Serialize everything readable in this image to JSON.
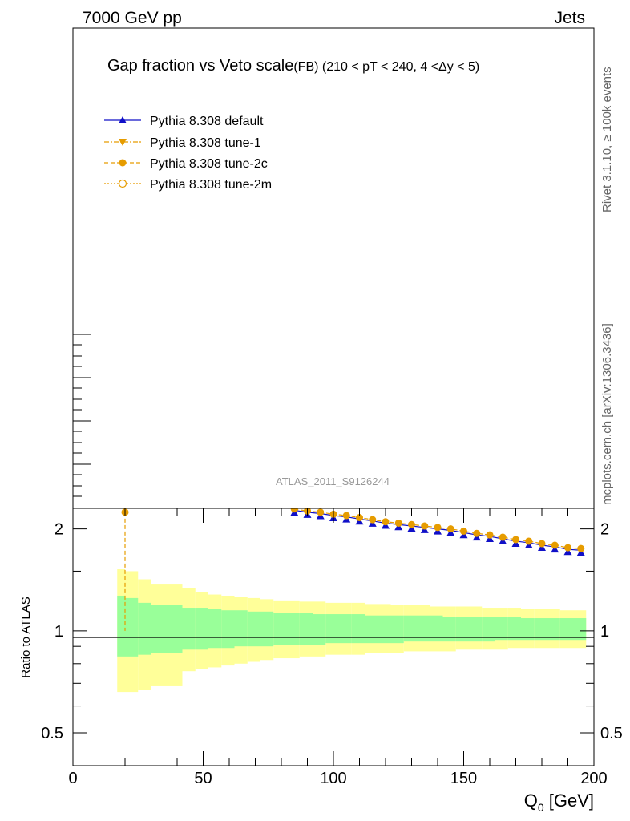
{
  "header": {
    "beam": "7000 GeV pp",
    "category": "Jets"
  },
  "side": {
    "rivet": "Rivet 3.1.10, ≥ 100k events",
    "mcplots": "mcplots.cern.ch [arXiv:1306.3436]"
  },
  "colors": {
    "default": "#1010c8",
    "tunes": "#e69c00",
    "band_outer": "#ffff99",
    "band_inner": "#99ff99"
  },
  "chart_data": {
    "type": "line",
    "title_main": "Gap fraction vs Veto scale",
    "title_sub": "(FB) (210 < pT < 240, 4 <Δy < 5)",
    "analysis_label": "ATLAS_2011_S9126244",
    "xlabel": "Q",
    "xlabel_sub": "0",
    "xlabel_unit": " [GeV]",
    "ratio_ylabel": "Ratio to ATLAS",
    "xlim": [
      0,
      200
    ],
    "ratio_ylim": [
      0.4,
      2.3
    ],
    "ratio_log": true,
    "x_ticks": [
      "0",
      "50",
      "100",
      "150",
      "200"
    ],
    "ratio_ticks": [
      "0.5",
      "1",
      "2"
    ],
    "legend": [
      {
        "name": "Pythia 8.308 default",
        "marker": "triangle-up",
        "line": "solid",
        "color": "#1010c8"
      },
      {
        "name": "Pythia 8.308 tune-1",
        "marker": "triangle-down",
        "line": "dashdot",
        "color": "#e69c00"
      },
      {
        "name": "Pythia 8.308 tune-2c",
        "marker": "circle",
        "line": "dashed",
        "color": "#e69c00"
      },
      {
        "name": "Pythia 8.308 tune-2m",
        "marker": "circle-open",
        "line": "dotted",
        "color": "#e69c00"
      }
    ],
    "band_bins": [
      {
        "x0": 17,
        "x1": 20,
        "in_lo": 0.84,
        "in_hi": 1.27,
        "out_lo": 0.66,
        "out_hi": 1.52
      },
      {
        "x0": 20,
        "x1": 25,
        "in_lo": 0.84,
        "in_hi": 1.25,
        "out_lo": 0.66,
        "out_hi": 1.5
      },
      {
        "x0": 25,
        "x1": 30,
        "in_lo": 0.85,
        "in_hi": 1.21,
        "out_lo": 0.67,
        "out_hi": 1.42
      },
      {
        "x0": 30,
        "x1": 42,
        "in_lo": 0.86,
        "in_hi": 1.19,
        "out_lo": 0.69,
        "out_hi": 1.37
      },
      {
        "x0": 42,
        "x1": 47,
        "in_lo": 0.88,
        "in_hi": 1.17,
        "out_lo": 0.76,
        "out_hi": 1.34
      },
      {
        "x0": 47,
        "x1": 52,
        "in_lo": 0.88,
        "in_hi": 1.17,
        "out_lo": 0.77,
        "out_hi": 1.3
      },
      {
        "x0": 52,
        "x1": 57,
        "in_lo": 0.89,
        "in_hi": 1.16,
        "out_lo": 0.78,
        "out_hi": 1.28
      },
      {
        "x0": 57,
        "x1": 62,
        "in_lo": 0.89,
        "in_hi": 1.15,
        "out_lo": 0.79,
        "out_hi": 1.27
      },
      {
        "x0": 62,
        "x1": 67,
        "in_lo": 0.9,
        "in_hi": 1.15,
        "out_lo": 0.8,
        "out_hi": 1.26
      },
      {
        "x0": 67,
        "x1": 72,
        "in_lo": 0.9,
        "in_hi": 1.14,
        "out_lo": 0.81,
        "out_hi": 1.25
      },
      {
        "x0": 72,
        "x1": 77,
        "in_lo": 0.9,
        "in_hi": 1.14,
        "out_lo": 0.82,
        "out_hi": 1.24
      },
      {
        "x0": 77,
        "x1": 82,
        "in_lo": 0.91,
        "in_hi": 1.13,
        "out_lo": 0.83,
        "out_hi": 1.23
      },
      {
        "x0": 82,
        "x1": 87,
        "in_lo": 0.91,
        "in_hi": 1.13,
        "out_lo": 0.83,
        "out_hi": 1.23
      },
      {
        "x0": 87,
        "x1": 92,
        "in_lo": 0.91,
        "in_hi": 1.13,
        "out_lo": 0.84,
        "out_hi": 1.22
      },
      {
        "x0": 92,
        "x1": 97,
        "in_lo": 0.91,
        "in_hi": 1.12,
        "out_lo": 0.84,
        "out_hi": 1.22
      },
      {
        "x0": 97,
        "x1": 102,
        "in_lo": 0.92,
        "in_hi": 1.12,
        "out_lo": 0.85,
        "out_hi": 1.21
      },
      {
        "x0": 102,
        "x1": 107,
        "in_lo": 0.92,
        "in_hi": 1.12,
        "out_lo": 0.85,
        "out_hi": 1.21
      },
      {
        "x0": 107,
        "x1": 112,
        "in_lo": 0.92,
        "in_hi": 1.12,
        "out_lo": 0.85,
        "out_hi": 1.21
      },
      {
        "x0": 112,
        "x1": 117,
        "in_lo": 0.92,
        "in_hi": 1.11,
        "out_lo": 0.86,
        "out_hi": 1.2
      },
      {
        "x0": 117,
        "x1": 122,
        "in_lo": 0.92,
        "in_hi": 1.11,
        "out_lo": 0.86,
        "out_hi": 1.2
      },
      {
        "x0": 122,
        "x1": 127,
        "in_lo": 0.92,
        "in_hi": 1.11,
        "out_lo": 0.86,
        "out_hi": 1.19
      },
      {
        "x0": 127,
        "x1": 132,
        "in_lo": 0.93,
        "in_hi": 1.11,
        "out_lo": 0.87,
        "out_hi": 1.19
      },
      {
        "x0": 132,
        "x1": 137,
        "in_lo": 0.93,
        "in_hi": 1.11,
        "out_lo": 0.87,
        "out_hi": 1.19
      },
      {
        "x0": 137,
        "x1": 142,
        "in_lo": 0.93,
        "in_hi": 1.11,
        "out_lo": 0.87,
        "out_hi": 1.18
      },
      {
        "x0": 142,
        "x1": 147,
        "in_lo": 0.93,
        "in_hi": 1.1,
        "out_lo": 0.87,
        "out_hi": 1.18
      },
      {
        "x0": 147,
        "x1": 152,
        "in_lo": 0.93,
        "in_hi": 1.1,
        "out_lo": 0.88,
        "out_hi": 1.18
      },
      {
        "x0": 152,
        "x1": 157,
        "in_lo": 0.93,
        "in_hi": 1.1,
        "out_lo": 0.88,
        "out_hi": 1.18
      },
      {
        "x0": 157,
        "x1": 162,
        "in_lo": 0.93,
        "in_hi": 1.1,
        "out_lo": 0.88,
        "out_hi": 1.17
      },
      {
        "x0": 162,
        "x1": 167,
        "in_lo": 0.94,
        "in_hi": 1.1,
        "out_lo": 0.88,
        "out_hi": 1.17
      },
      {
        "x0": 167,
        "x1": 172,
        "in_lo": 0.94,
        "in_hi": 1.1,
        "out_lo": 0.89,
        "out_hi": 1.17
      },
      {
        "x0": 172,
        "x1": 177,
        "in_lo": 0.94,
        "in_hi": 1.09,
        "out_lo": 0.89,
        "out_hi": 1.16
      },
      {
        "x0": 177,
        "x1": 182,
        "in_lo": 0.94,
        "in_hi": 1.09,
        "out_lo": 0.89,
        "out_hi": 1.16
      },
      {
        "x0": 182,
        "x1": 187,
        "in_lo": 0.94,
        "in_hi": 1.09,
        "out_lo": 0.89,
        "out_hi": 1.16
      },
      {
        "x0": 187,
        "x1": 192,
        "in_lo": 0.94,
        "in_hi": 1.09,
        "out_lo": 0.89,
        "out_hi": 1.15
      },
      {
        "x0": 192,
        "x1": 197,
        "in_lo": 0.94,
        "in_hi": 1.09,
        "out_lo": 0.89,
        "out_hi": 1.15
      }
    ],
    "series": [
      {
        "name": "Pythia 8.308 default",
        "x": [
          85,
          90,
          95,
          100,
          105,
          110,
          115,
          120,
          125,
          130,
          135,
          140,
          145,
          150,
          155,
          160,
          165,
          170,
          175,
          180,
          185,
          190,
          195
        ],
        "y": [
          2.27,
          2.24,
          2.22,
          2.19,
          2.17,
          2.14,
          2.11,
          2.08,
          2.06,
          2.04,
          2.02,
          2.0,
          1.98,
          1.95,
          1.92,
          1.9,
          1.87,
          1.84,
          1.82,
          1.79,
          1.77,
          1.74,
          1.73
        ]
      },
      {
        "name": "Pythia 8.308 tune-2c",
        "x": [
          20,
          85,
          90,
          95,
          100,
          105,
          110,
          115,
          120,
          125,
          130,
          135,
          140,
          145,
          150,
          155,
          160,
          165,
          170,
          175,
          180,
          185,
          190,
          195
        ],
        "y": [
          2.24,
          2.29,
          2.26,
          2.24,
          2.21,
          2.19,
          2.16,
          2.13,
          2.1,
          2.08,
          2.06,
          2.04,
          2.02,
          2.0,
          1.97,
          1.94,
          1.92,
          1.89,
          1.86,
          1.84,
          1.81,
          1.79,
          1.76,
          1.75
        ]
      }
    ]
  }
}
